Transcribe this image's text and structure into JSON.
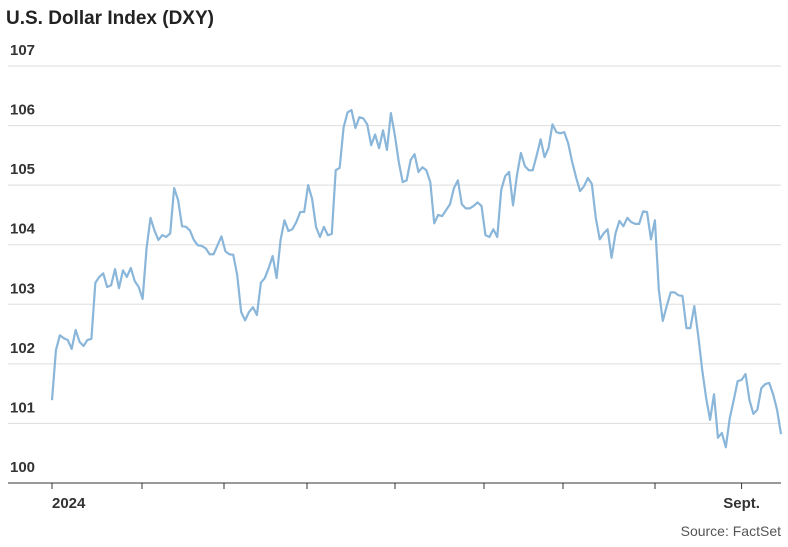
{
  "chart_data": {
    "type": "line",
    "title": "U.S. Dollar Index (DXY)",
    "source": "Source: FactSet",
    "color": "#8ab6da",
    "grid": true,
    "ylim": [
      100,
      107
    ],
    "yticks": [
      100,
      101,
      102,
      103,
      104,
      105,
      106,
      107
    ],
    "categories": [
      "2024",
      null,
      null,
      null,
      null,
      null,
      null,
      null,
      null,
      null,
      null,
      null,
      null,
      null,
      null,
      null,
      null,
      null,
      null,
      null,
      null,
      null,
      null,
      null,
      null,
      null,
      null,
      null,
      null,
      null,
      null,
      null,
      null,
      null,
      null,
      null,
      null,
      null,
      null,
      null,
      null,
      null,
      null,
      null,
      null,
      null,
      null,
      null,
      null,
      null,
      null,
      null,
      null,
      null,
      null,
      null,
      null,
      null,
      null,
      null,
      null,
      null,
      null,
      null,
      null,
      null,
      null,
      null,
      null,
      null,
      null,
      null,
      null,
      null,
      null,
      null,
      null,
      null,
      null,
      null,
      null,
      null,
      null,
      null,
      null,
      null,
      null,
      null,
      null,
      null,
      null,
      null,
      null,
      null,
      null,
      null,
      null,
      null,
      null,
      null,
      null,
      null,
      null,
      null,
      null,
      null,
      null,
      null,
      null,
      null,
      null,
      null,
      null,
      null,
      null,
      null,
      null,
      null,
      null,
      null,
      null,
      null,
      null,
      null,
      null,
      null,
      null,
      null,
      null,
      null,
      null,
      null,
      null,
      null,
      null,
      null,
      null,
      null,
      null,
      null,
      null,
      null,
      null,
      null,
      null,
      null,
      null,
      null,
      null,
      null,
      null,
      null,
      null,
      null,
      null,
      null,
      null,
      null,
      null,
      null,
      null,
      null,
      null,
      null,
      null,
      null,
      null,
      null,
      null,
      null,
      null,
      null,
      null,
      null,
      null,
      "Sept.",
      null,
      null,
      null,
      null,
      null,
      null,
      null,
      null,
      null,
      null
    ],
    "values": [
      101.39,
      102.23,
      102.48,
      102.43,
      102.4,
      102.25,
      102.57,
      102.37,
      102.3,
      102.4,
      102.42,
      103.36,
      103.46,
      103.52,
      103.29,
      103.32,
      103.59,
      103.27,
      103.57,
      103.46,
      103.61,
      103.39,
      103.29,
      103.09,
      103.94,
      104.45,
      104.24,
      104.08,
      104.16,
      104.13,
      104.19,
      104.95,
      104.75,
      104.31,
      104.3,
      104.24,
      104.08,
      103.99,
      103.98,
      103.94,
      103.84,
      103.84,
      103.99,
      104.14,
      103.89,
      103.84,
      103.83,
      103.49,
      102.87,
      102.73,
      102.87,
      102.95,
      102.82,
      103.36,
      103.44,
      103.61,
      103.81,
      103.44,
      104.08,
      104.41,
      104.23,
      104.26,
      104.38,
      104.55,
      104.55,
      105.0,
      104.77,
      104.3,
      104.13,
      104.3,
      104.16,
      104.18,
      105.25,
      105.29,
      105.97,
      106.22,
      106.26,
      105.96,
      106.14,
      106.12,
      106.02,
      105.67,
      105.85,
      105.62,
      105.92,
      105.59,
      106.21,
      105.84,
      105.39,
      105.05,
      105.08,
      105.42,
      105.52,
      105.22,
      105.3,
      105.25,
      105.05,
      104.36,
      104.5,
      104.48,
      104.58,
      104.68,
      104.95,
      105.08,
      104.68,
      104.61,
      104.61,
      104.65,
      104.71,
      104.65,
      104.16,
      104.13,
      104.26,
      104.13,
      104.92,
      105.15,
      105.22,
      104.66,
      105.17,
      105.54,
      105.32,
      105.25,
      105.25,
      105.5,
      105.77,
      105.47,
      105.62,
      106.02,
      105.89,
      105.87,
      105.89,
      105.7,
      105.39,
      105.13,
      104.9,
      104.98,
      105.12,
      105.02,
      104.45,
      104.09,
      104.19,
      104.26,
      103.78,
      104.19,
      104.4,
      104.31,
      104.45,
      104.38,
      104.35,
      104.35,
      104.56,
      104.55,
      104.09,
      104.41,
      103.24,
      102.72,
      102.97,
      103.2,
      103.2,
      103.15,
      103.14,
      102.6,
      102.6,
      102.97,
      102.47,
      101.9,
      101.43,
      101.06,
      101.49,
      100.76,
      100.84,
      100.6,
      101.09,
      101.39,
      101.71,
      101.73,
      101.83,
      101.39,
      101.16,
      101.23,
      101.59,
      101.66,
      101.68,
      101.49,
      101.23,
      100.82
    ]
  }
}
